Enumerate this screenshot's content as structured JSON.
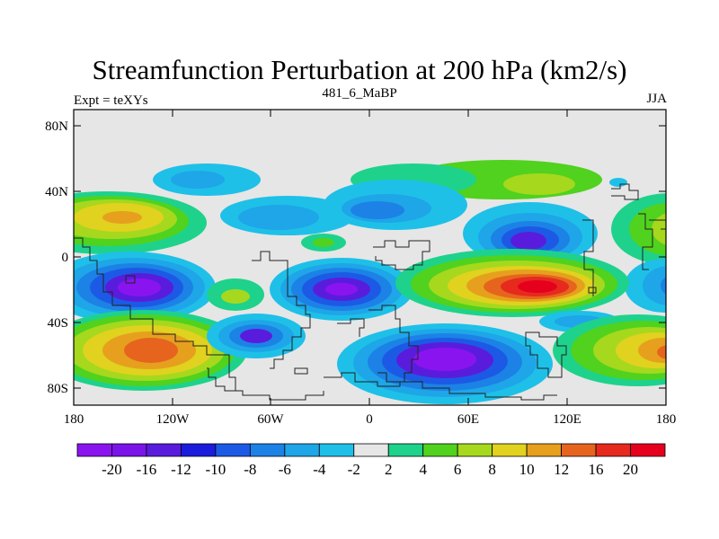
{
  "title": "Streamfunction Perturbation at 200 hPa (km2/s)",
  "subtitle_left": "Expt = teXYs",
  "subtitle_center": "481_6_MaBP",
  "subtitle_right": "JJA",
  "chart_data": {
    "type": "heatmap",
    "x_range": [
      -180,
      180
    ],
    "y_range": [
      -90,
      90
    ],
    "x_ticks": [
      "180",
      "120W",
      "60W",
      "0",
      "60E",
      "120E",
      "180"
    ],
    "y_ticks": [
      "80N",
      "40N",
      "0",
      "40S",
      "80S"
    ],
    "colorbar": {
      "labels": [
        "-20",
        "-16",
        "-12",
        "-10",
        "-8",
        "-6",
        "-4",
        "-2",
        "2",
        "4",
        "6",
        "8",
        "10",
        "12",
        "16",
        "20"
      ],
      "colors": [
        "#8a14f0",
        "#7a14e8",
        "#5a1cdc",
        "#1c1cdc",
        "#1c5ae6",
        "#1c82e6",
        "#1ea6e8",
        "#1ec0e8",
        "#e6e6e6",
        "#1ed28c",
        "#50d21e",
        "#a6d81e",
        "#e0d21e",
        "#e6a01e",
        "#e6641e",
        "#e62a1e",
        "#e6001e"
      ]
    },
    "features": [
      {
        "lon": -142,
        "lat": 22,
        "value": 9
      },
      {
        "lon": -140,
        "lat": -20,
        "value": -17
      },
      {
        "lon": -125,
        "lat": -55,
        "value": 12
      },
      {
        "lon": -70,
        "lat": -48,
        "value": -12
      },
      {
        "lon": -10,
        "lat": -19,
        "value": -15
      },
      {
        "lon": 50,
        "lat": -62,
        "value": -18
      },
      {
        "lon": 95,
        "lat": -20,
        "value": 17
      },
      {
        "lon": 98,
        "lat": 11,
        "value": -13
      },
      {
        "lon": 60,
        "lat": 45,
        "value": 5
      },
      {
        "lon": -60,
        "lat": 43,
        "value": -4
      },
      {
        "lon": 175,
        "lat": -60,
        "value": 11
      },
      {
        "lon": 175,
        "lat": 20,
        "value": 6
      }
    ]
  }
}
